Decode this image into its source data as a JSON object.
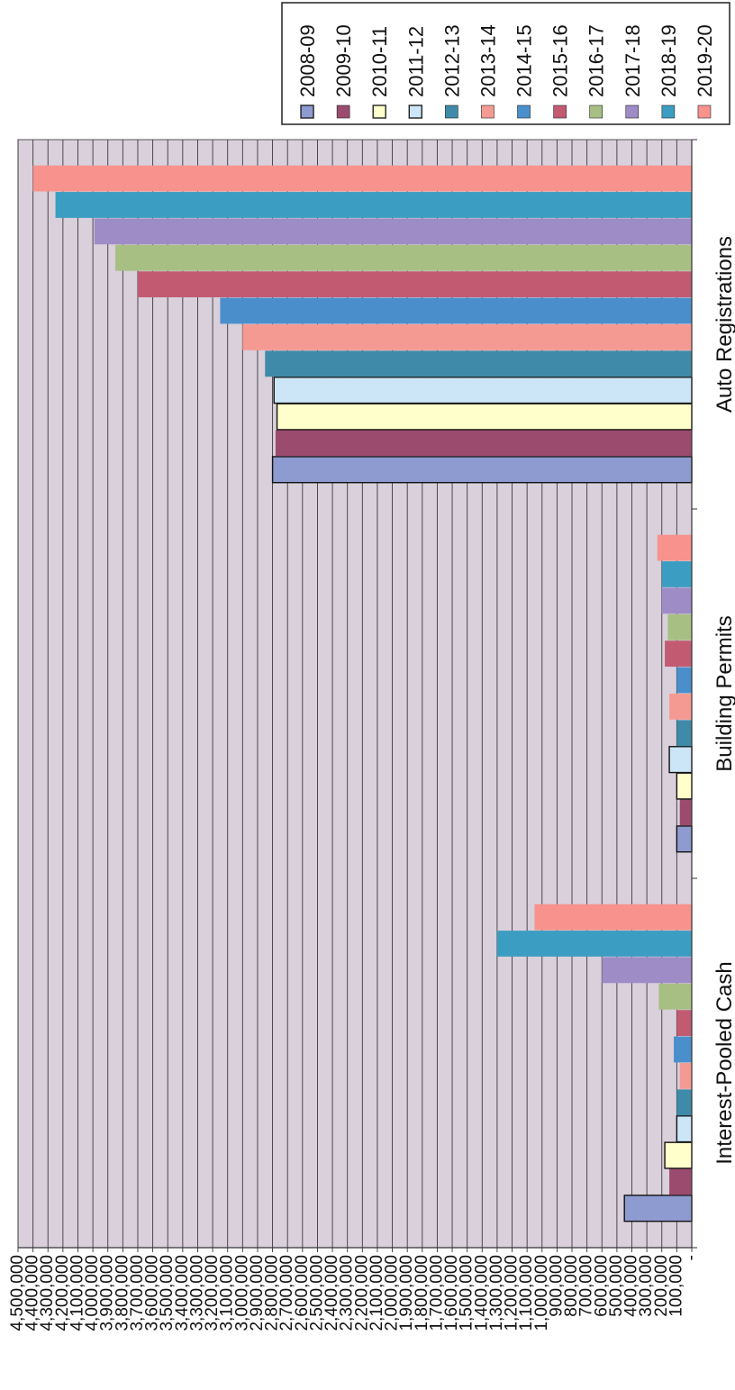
{
  "chart_data": {
    "type": "bar",
    "orientation": "rotated-90",
    "title": "",
    "xlabel": "",
    "ylabel": "",
    "categories": [
      "Interest-Pooled Cash",
      "Building Permits",
      "Auto Registrations"
    ],
    "series": [
      {
        "name": "2008-09",
        "color": "#8E9BD1",
        "outlined": true,
        "values": [
          450000,
          100000,
          2800000
        ]
      },
      {
        "name": "2009-10",
        "color": "#9A4B6E",
        "outlined": false,
        "values": [
          150000,
          80000,
          2780000
        ]
      },
      {
        "name": "2010-11",
        "color": "#FFFFCC",
        "outlined": true,
        "values": [
          180000,
          100000,
          2770000
        ]
      },
      {
        "name": "2011-12",
        "color": "#CCE6F7",
        "outlined": true,
        "values": [
          100000,
          150000,
          2790000
        ]
      },
      {
        "name": "2012-13",
        "color": "#3F8AA8",
        "outlined": false,
        "values": [
          100000,
          100000,
          2850000
        ]
      },
      {
        "name": "2013-14",
        "color": "#F59A93",
        "outlined": false,
        "values": [
          80000,
          150000,
          3000000
        ]
      },
      {
        "name": "2014-15",
        "color": "#4A8FCC",
        "outlined": false,
        "values": [
          120000,
          100000,
          3150000
        ]
      },
      {
        "name": "2015-16",
        "color": "#C25B72",
        "outlined": false,
        "values": [
          100000,
          180000,
          3700000
        ]
      },
      {
        "name": "2016-17",
        "color": "#A8BF84",
        "outlined": false,
        "values": [
          220000,
          160000,
          3850000
        ]
      },
      {
        "name": "2017-18",
        "color": "#9E8CC6",
        "outlined": false,
        "values": [
          600000,
          200000,
          3990000
        ]
      },
      {
        "name": "2018-19",
        "color": "#3C9DC2",
        "outlined": false,
        "values": [
          1300000,
          200000,
          4250000
        ]
      },
      {
        "name": "2019-20",
        "color": "#F7928C",
        "outlined": false,
        "values": [
          1050000,
          230000,
          4400000
        ]
      }
    ],
    "ylim": [
      0,
      4500000
    ],
    "ytick_step": 100000,
    "yticks": [
      "-",
      "100,000",
      "200,000",
      "300,000",
      "400,000",
      "500,000",
      "600,000",
      "700,000",
      "800,000",
      "900,000",
      "1,000,000",
      "1,100,000",
      "1,200,000",
      "1,300,000",
      "1,400,000",
      "1,500,000",
      "1,600,000",
      "1,700,000",
      "1,800,000",
      "1,900,000",
      "2,000,000",
      "2,100,000",
      "2,200,000",
      "2,300,000",
      "2,400,000",
      "2,500,000",
      "2,600,000",
      "2,700,000",
      "2,800,000",
      "2,900,000",
      "3,000,000",
      "3,100,000",
      "3,200,000",
      "3,300,000",
      "3,400,000",
      "3,500,000",
      "3,600,000",
      "3,700,000",
      "3,800,000",
      "3,900,000",
      "4,000,000",
      "4,100,000",
      "4,200,000",
      "4,300,000",
      "4,400,000",
      "4,500,000"
    ],
    "grid": true,
    "plot_background": "#D9D0DB",
    "legend_position": "top-right"
  }
}
